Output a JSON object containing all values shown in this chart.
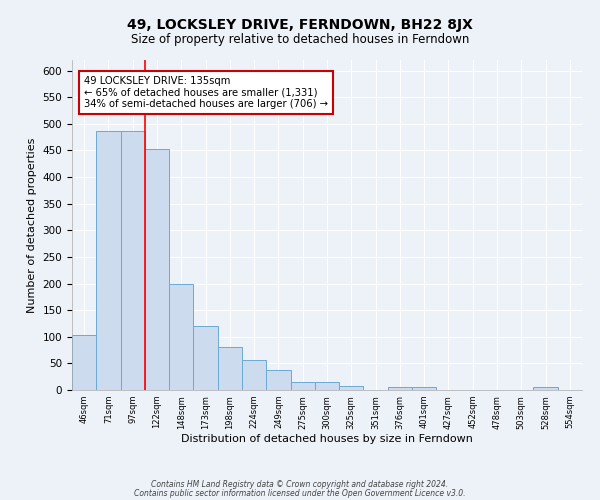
{
  "title": "49, LOCKSLEY DRIVE, FERNDOWN, BH22 8JX",
  "subtitle": "Size of property relative to detached houses in Ferndown",
  "xlabel": "Distribution of detached houses by size in Ferndown",
  "ylabel": "Number of detached properties",
  "bar_labels": [
    "46sqm",
    "71sqm",
    "97sqm",
    "122sqm",
    "148sqm",
    "173sqm",
    "198sqm",
    "224sqm",
    "249sqm",
    "275sqm",
    "300sqm",
    "325sqm",
    "351sqm",
    "376sqm",
    "401sqm",
    "427sqm",
    "452sqm",
    "478sqm",
    "503sqm",
    "528sqm",
    "554sqm"
  ],
  "bar_heights": [
    103,
    487,
    487,
    452,
    200,
    121,
    80,
    57,
    37,
    15,
    15,
    8,
    0,
    5,
    5,
    0,
    0,
    0,
    0,
    5,
    0
  ],
  "bar_color": "#ccdcee",
  "bar_edge_color": "#6aaad4",
  "bar_width": 1.0,
  "ylim": [
    0,
    620
  ],
  "yticks": [
    0,
    50,
    100,
    150,
    200,
    250,
    300,
    350,
    400,
    450,
    500,
    550,
    600
  ],
  "red_line_x": 3.0,
  "annotation_title": "49 LOCKSLEY DRIVE: 135sqm",
  "annotation_line1": "← 65% of detached houses are smaller (1,331)",
  "annotation_line2": "34% of semi-detached houses are larger (706) →",
  "footer_line1": "Contains HM Land Registry data © Crown copyright and database right 2024.",
  "footer_line2": "Contains public sector information licensed under the Open Government Licence v3.0.",
  "background_color": "#edf2f9",
  "plot_background": "#edf2f9",
  "grid_color": "#ffffff",
  "title_fontsize": 10,
  "subtitle_fontsize": 8.5,
  "ylabel_fontsize": 8,
  "xlabel_fontsize": 8
}
